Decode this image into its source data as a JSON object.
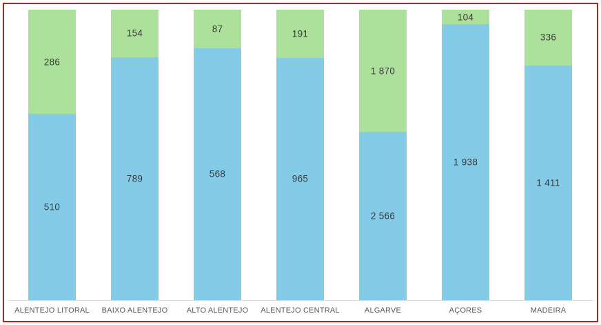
{
  "window": {
    "background_color": "#FFFFFF",
    "frame_border_color": "#E01212"
  },
  "chart_data": {
    "type": "bar",
    "subtype": "stacked-100-percent",
    "orientation": "vertical",
    "title": "",
    "xlabel": "",
    "ylabel": "",
    "legend": "none",
    "grid": "off",
    "y_axis": "hidden",
    "axis_line_color": "#D9D9D9",
    "category_label_color": "#595959",
    "data_label_color": "#3A3A3A",
    "data_labels_visible": true,
    "thousands_separator": "space",
    "categories": [
      "ALENTEJO LITORAL",
      "BAIXO ALENTEJO",
      "ALTO ALENTEJO",
      "ALENTEJO CENTRAL",
      "ALGARVE",
      "AÇORES",
      "MADEIRA"
    ],
    "series": [
      {
        "name": "bottom-segment",
        "color": "#84CBE8",
        "values": [
          510,
          789,
          568,
          965,
          2566,
          1938,
          1411
        ]
      },
      {
        "name": "top-segment",
        "color": "#ACE09B",
        "values": [
          286,
          154,
          87,
          191,
          1870,
          104,
          336
        ]
      }
    ]
  }
}
